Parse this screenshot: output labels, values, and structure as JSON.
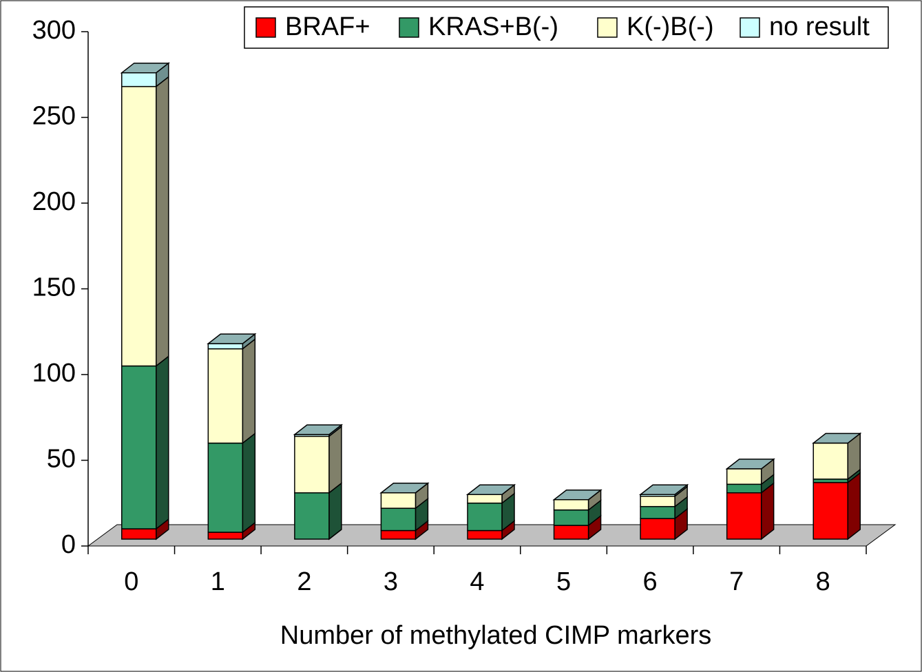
{
  "chart_data": {
    "type": "bar3d_stacked",
    "x_label": "Number of methylated CIMP markers",
    "categories": [
      "0",
      "1",
      "2",
      "3",
      "4",
      "5",
      "6",
      "7",
      "8"
    ],
    "series": [
      {
        "name": "BRAF+",
        "color": "#ff0000",
        "values": [
          6,
          4,
          0,
          5,
          5,
          8,
          12,
          27,
          33
        ]
      },
      {
        "name": "KRAS+B(-)",
        "color": "#339966",
        "values": [
          95,
          52,
          27,
          13,
          16,
          9,
          7,
          5,
          2
        ]
      },
      {
        "name": "K(-)B(-)",
        "color": "#ffffcc",
        "values": [
          163,
          55,
          33,
          9,
          5,
          6,
          6,
          9,
          21
        ]
      },
      {
        "name": "no result",
        "color": "#ccffff",
        "values": [
          8,
          3,
          1,
          0,
          0,
          0,
          1,
          0,
          0
        ]
      }
    ],
    "ylim": [
      0,
      300
    ],
    "yticks": [
      0,
      50,
      100,
      150,
      200,
      250,
      300
    ]
  }
}
